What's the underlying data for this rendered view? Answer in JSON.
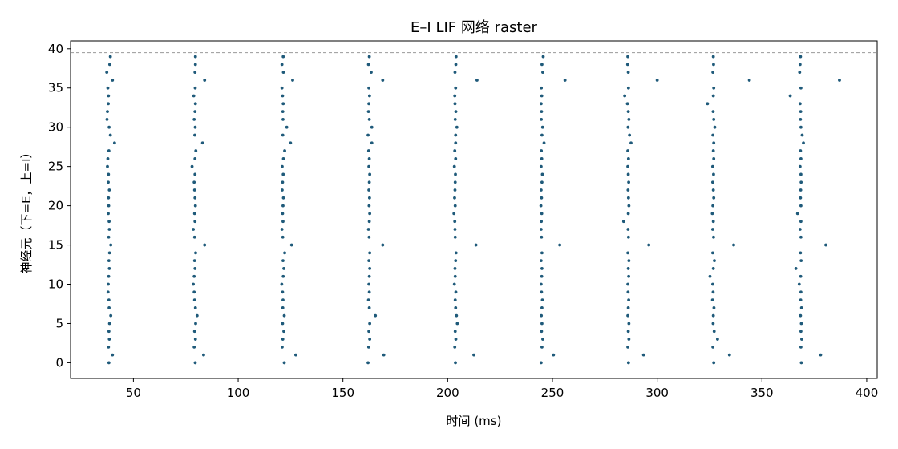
{
  "chart_data": {
    "type": "scatter",
    "title": "E–I LIF 网络 raster",
    "xlabel": "时间 (ms)",
    "ylabel": "神经元（下=E，上=I）",
    "xlim": [
      20,
      405
    ],
    "ylim": [
      -2,
      41
    ],
    "xticks": [
      50,
      100,
      150,
      200,
      250,
      300,
      350,
      400
    ],
    "yticks": [
      0,
      5,
      10,
      15,
      20,
      25,
      30,
      35,
      40
    ],
    "grid": false,
    "marker_color": "#1f5a7a",
    "reference_line": {
      "y": 39.5,
      "style": "dashed",
      "color": "#999999"
    },
    "bursts": [
      {
        "name": "burst1",
        "times": [
          38.3,
          40.0,
          38.1,
          38.5,
          38.3,
          38.6,
          39.2,
          38.4,
          38.3,
          37.9,
          38.0,
          38.2,
          38.5,
          38.3,
          38.6,
          39.2,
          38.2,
          38.5,
          38.4,
          38.0,
          38.2,
          38.1,
          38.5,
          38.0,
          38.1,
          37.6,
          37.8,
          38.3,
          41.0,
          39.0,
          38.4,
          37.4,
          37.6,
          38.0,
          38.1,
          37.8,
          40.0,
          37.3,
          38.7,
          39.0
        ]
      },
      {
        "name": "burst2",
        "times": [
          79.5,
          83.5,
          79.0,
          79.6,
          79.2,
          79.7,
          80.4,
          79.6,
          79.2,
          79.0,
          78.6,
          79.0,
          79.4,
          79.2,
          79.7,
          84.0,
          79.2,
          78.6,
          79.4,
          79.2,
          79.6,
          79.4,
          79.2,
          79.0,
          79.4,
          78.0,
          79.4,
          79.8,
          83.0,
          79.3,
          79.5,
          79.0,
          79.4,
          79.6,
          78.8,
          79.5,
          84.0,
          79.4,
          79.6,
          79.6
        ]
      },
      {
        "name": "burst3",
        "times": [
          122.0,
          127.5,
          121.0,
          121.3,
          121.8,
          121.2,
          122.0,
          121.3,
          121.4,
          121.2,
          120.8,
          121.5,
          121.8,
          121.4,
          122.2,
          125.5,
          121.3,
          120.9,
          121.4,
          121.2,
          121.4,
          121.6,
          121.0,
          121.2,
          121.5,
          121.0,
          121.6,
          122.2,
          125.0,
          121.3,
          123.2,
          121.4,
          121.3,
          121.5,
          121.2,
          120.9,
          126.0,
          121.6,
          120.9,
          121.5
        ]
      },
      {
        "name": "burst4",
        "times": [
          162.0,
          169.5,
          162.3,
          162.8,
          162.4,
          162.8,
          165.5,
          162.6,
          162.2,
          162.6,
          162.4,
          162.6,
          162.8,
          162.4,
          162.8,
          169.0,
          162.5,
          162.2,
          162.6,
          162.8,
          162.5,
          162.7,
          162.4,
          162.6,
          162.8,
          162.4,
          162.6,
          162.3,
          163.8,
          162.0,
          163.8,
          162.6,
          162.2,
          162.4,
          162.7,
          162.4,
          169.0,
          163.5,
          162.2,
          162.6
        ]
      },
      {
        "name": "burst5",
        "times": [
          203.7,
          212.5,
          203.4,
          203.9,
          203.6,
          204.6,
          204.2,
          203.8,
          203.6,
          203.9,
          203.2,
          203.6,
          203.5,
          203.8,
          204.0,
          213.5,
          203.6,
          203.5,
          203.4,
          203.0,
          203.6,
          203.3,
          203.5,
          203.6,
          203.7,
          203.2,
          203.8,
          203.4,
          203.8,
          203.8,
          204.4,
          203.6,
          203.9,
          203.5,
          203.4,
          203.8,
          214.0,
          203.5,
          203.9,
          204.0
        ]
      },
      {
        "name": "burst6",
        "times": [
          244.6,
          250.5,
          245.0,
          245.4,
          244.8,
          245.0,
          244.7,
          245.0,
          245.2,
          244.8,
          244.6,
          244.9,
          245.0,
          244.6,
          245.0,
          253.5,
          244.8,
          244.6,
          244.7,
          244.9,
          244.5,
          244.8,
          244.6,
          245.0,
          245.2,
          244.6,
          244.9,
          244.7,
          246.0,
          245.0,
          245.3,
          244.7,
          244.8,
          244.6,
          244.9,
          244.7,
          256.0,
          245.4,
          245.0,
          245.6
        ]
      },
      {
        "name": "burst7",
        "times": [
          286.3,
          293.5,
          286.0,
          286.5,
          286.2,
          286.5,
          286.0,
          286.2,
          286.4,
          286.1,
          286.0,
          286.4,
          286.2,
          286.5,
          286.0,
          296.0,
          286.3,
          286.1,
          284.0,
          286.2,
          286.5,
          286.3,
          286.1,
          286.4,
          286.2,
          286.0,
          286.3,
          286.0,
          287.5,
          286.8,
          286.1,
          286.5,
          286.2,
          285.8,
          284.5,
          286.3,
          300.0,
          286.2,
          285.9,
          286.0
        ]
      },
      {
        "name": "burst8",
        "times": [
          327.0,
          334.5,
          326.6,
          328.8,
          327.2,
          326.7,
          326.8,
          327.1,
          326.4,
          326.7,
          326.5,
          325.2,
          326.8,
          327.3,
          326.5,
          336.5,
          326.9,
          326.5,
          326.8,
          326.3,
          326.6,
          327.0,
          326.8,
          326.5,
          326.9,
          326.5,
          327.0,
          326.8,
          327.0,
          326.6,
          327.5,
          327.0,
          326.7,
          324.0,
          326.8,
          327.0,
          344.0,
          326.6,
          326.9,
          326.8
        ]
      },
      {
        "name": "burst9",
        "times": [
          368.8,
          378.0,
          368.6,
          369.0,
          368.6,
          368.8,
          368.4,
          368.9,
          368.5,
          368.6,
          367.8,
          368.5,
          366.2,
          368.7,
          368.4,
          380.5,
          368.6,
          368.2,
          368.6,
          367.0,
          368.6,
          368.4,
          368.5,
          368.7,
          368.6,
          368.2,
          368.6,
          368.4,
          369.8,
          369.2,
          368.6,
          368.4,
          368.5,
          368.2,
          363.5,
          368.6,
          387.0,
          368.0,
          368.2,
          368.4
        ]
      }
    ]
  }
}
